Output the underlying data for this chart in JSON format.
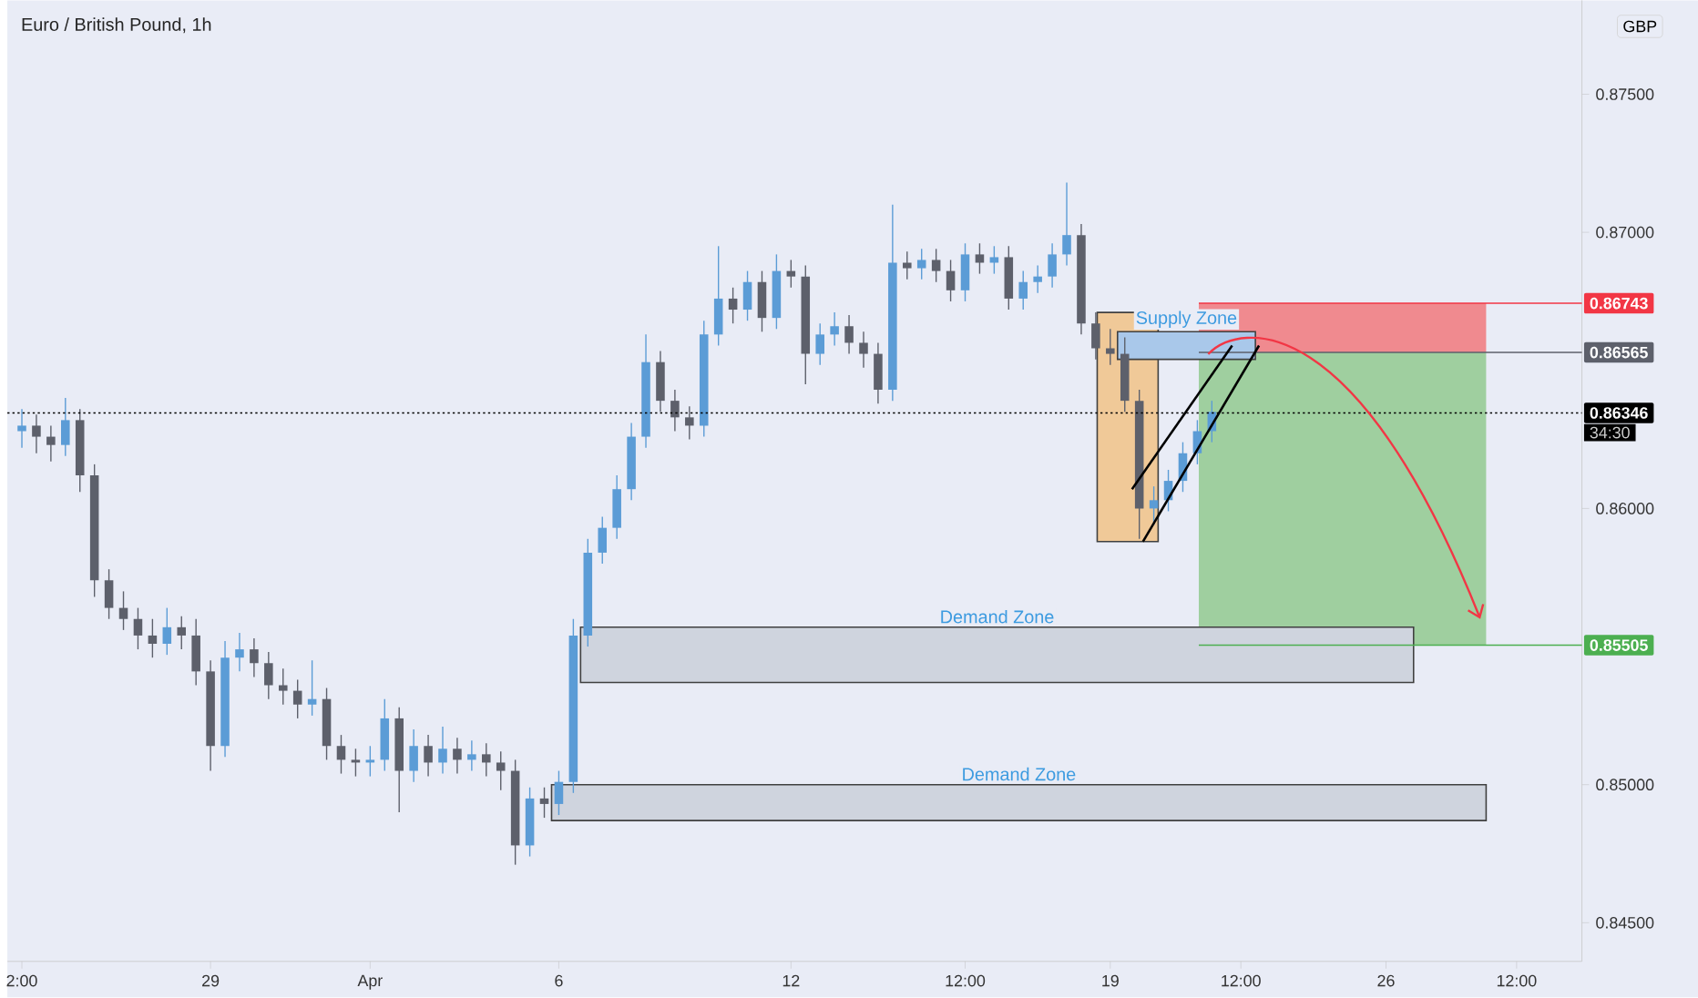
{
  "chart_data": {
    "type": "candlestick",
    "title": "Euro / British Pound, 1h",
    "ylabel": "GBP",
    "categories": [
      "2:00",
      null,
      null,
      null,
      null,
      null,
      null,
      null,
      null,
      null,
      null,
      null,
      null,
      "29",
      null,
      null,
      null,
      null,
      null,
      null,
      null,
      null,
      null,
      null,
      "Apr",
      null,
      null,
      null,
      null,
      null,
      null,
      null,
      null,
      null,
      null,
      null,
      null,
      "6",
      null,
      null,
      null,
      null,
      null,
      null,
      null,
      null,
      null,
      null,
      null,
      null,
      null,
      null,
      null,
      "12",
      null,
      null,
      null,
      null,
      null,
      null,
      null,
      null,
      null,
      null,
      null,
      "12:00",
      null,
      null,
      null,
      null,
      null,
      null,
      null,
      null,
      null,
      "19",
      null,
      null,
      null,
      null,
      null,
      null,
      null,
      null,
      "12:00",
      null,
      null,
      null,
      null,
      null,
      null,
      null,
      null,
      null,
      "26",
      null,
      null,
      null,
      null,
      null,
      null,
      null,
      null,
      "12:00",
      null,
      null,
      null,
      null
    ],
    "ohlc": [
      [
        0.8628,
        0.8636,
        0.8622,
        0.863
      ],
      [
        0.863,
        0.8634,
        0.862,
        0.8626
      ],
      [
        0.8626,
        0.863,
        0.8617,
        0.8623
      ],
      [
        0.8623,
        0.864,
        0.8619,
        0.8632
      ],
      [
        0.8632,
        0.8636,
        0.8606,
        0.8612
      ],
      [
        0.8612,
        0.8616,
        0.8568,
        0.8574
      ],
      [
        0.8574,
        0.8578,
        0.856,
        0.8564
      ],
      [
        0.8564,
        0.857,
        0.8556,
        0.856
      ],
      [
        0.856,
        0.8564,
        0.8549,
        0.8554
      ],
      [
        0.8554,
        0.856,
        0.8546,
        0.8551
      ],
      [
        0.8551,
        0.8564,
        0.8547,
        0.8557
      ],
      [
        0.8557,
        0.8561,
        0.8549,
        0.8554
      ],
      [
        0.8554,
        0.856,
        0.8536,
        0.8541
      ],
      [
        0.8541,
        0.8545,
        0.8505,
        0.8514
      ],
      [
        0.8514,
        0.8552,
        0.851,
        0.8546
      ],
      [
        0.8546,
        0.8555,
        0.8541,
        0.8549
      ],
      [
        0.8549,
        0.8553,
        0.8539,
        0.8544
      ],
      [
        0.8544,
        0.8548,
        0.8531,
        0.8536
      ],
      [
        0.8536,
        0.8542,
        0.8529,
        0.8534
      ],
      [
        0.8534,
        0.8538,
        0.8524,
        0.8529
      ],
      [
        0.8529,
        0.8545,
        0.8525,
        0.8531
      ],
      [
        0.8531,
        0.8535,
        0.8509,
        0.8514
      ],
      [
        0.8514,
        0.8518,
        0.8504,
        0.8509
      ],
      [
        0.8509,
        0.8513,
        0.8503,
        0.8508
      ],
      [
        0.8508,
        0.8514,
        0.8503,
        0.8509
      ],
      [
        0.8509,
        0.8531,
        0.8505,
        0.8524
      ],
      [
        0.8524,
        0.8528,
        0.849,
        0.8505
      ],
      [
        0.8505,
        0.852,
        0.8501,
        0.8514
      ],
      [
        0.8514,
        0.8518,
        0.8503,
        0.8508
      ],
      [
        0.8508,
        0.8521,
        0.8504,
        0.8513
      ],
      [
        0.8513,
        0.8517,
        0.8504,
        0.8509
      ],
      [
        0.8509,
        0.8516,
        0.8505,
        0.8511
      ],
      [
        0.8511,
        0.8515,
        0.8503,
        0.8508
      ],
      [
        0.8508,
        0.8512,
        0.8498,
        0.8505
      ],
      [
        0.8505,
        0.8509,
        0.8471,
        0.8478
      ],
      [
        0.8478,
        0.8499,
        0.8474,
        0.8495
      ],
      [
        0.8495,
        0.8499,
        0.8488,
        0.8493
      ],
      [
        0.8493,
        0.8505,
        0.8489,
        0.8501
      ],
      [
        0.8501,
        0.856,
        0.8497,
        0.8554
      ],
      [
        0.8554,
        0.8589,
        0.855,
        0.8584
      ],
      [
        0.8584,
        0.8597,
        0.858,
        0.8593
      ],
      [
        0.8593,
        0.8612,
        0.8589,
        0.8607
      ],
      [
        0.8607,
        0.8631,
        0.8603,
        0.8626
      ],
      [
        0.8626,
        0.8663,
        0.8622,
        0.8653
      ],
      [
        0.8653,
        0.8657,
        0.8635,
        0.8639
      ],
      [
        0.8639,
        0.8643,
        0.8628,
        0.8633
      ],
      [
        0.8633,
        0.8637,
        0.8625,
        0.863
      ],
      [
        0.863,
        0.8668,
        0.8626,
        0.8663
      ],
      [
        0.8663,
        0.8695,
        0.8659,
        0.8676
      ],
      [
        0.8676,
        0.868,
        0.8667,
        0.8672
      ],
      [
        0.8672,
        0.8686,
        0.8668,
        0.8682
      ],
      [
        0.8682,
        0.8686,
        0.8664,
        0.8669
      ],
      [
        0.8669,
        0.8692,
        0.8665,
        0.8686
      ],
      [
        0.8686,
        0.869,
        0.868,
        0.8684
      ],
      [
        0.8684,
        0.8688,
        0.8645,
        0.8656
      ],
      [
        0.8656,
        0.8667,
        0.8652,
        0.8663
      ],
      [
        0.8663,
        0.8671,
        0.8659,
        0.8666
      ],
      [
        0.8666,
        0.867,
        0.8656,
        0.866
      ],
      [
        0.866,
        0.8664,
        0.8651,
        0.8656
      ],
      [
        0.8656,
        0.866,
        0.8638,
        0.8643
      ],
      [
        0.8643,
        0.871,
        0.8639,
        0.8689
      ],
      [
        0.8689,
        0.8693,
        0.8683,
        0.8687
      ],
      [
        0.8687,
        0.8694,
        0.8683,
        0.869
      ],
      [
        0.869,
        0.8694,
        0.8682,
        0.8686
      ],
      [
        0.8686,
        0.869,
        0.8675,
        0.8679
      ],
      [
        0.8679,
        0.8696,
        0.8675,
        0.8692
      ],
      [
        0.8692,
        0.8696,
        0.8685,
        0.8689
      ],
      [
        0.8689,
        0.8695,
        0.8685,
        0.8691
      ],
      [
        0.8691,
        0.8695,
        0.8672,
        0.8676
      ],
      [
        0.8676,
        0.8686,
        0.8672,
        0.8682
      ],
      [
        0.8682,
        0.8688,
        0.8678,
        0.8684
      ],
      [
        0.8684,
        0.8696,
        0.868,
        0.8692
      ],
      [
        0.8692,
        0.8718,
        0.8688,
        0.8699
      ],
      [
        0.8699,
        0.8703,
        0.8663,
        0.8667
      ],
      [
        0.8667,
        0.8671,
        0.8654,
        0.8658
      ],
      [
        0.8658,
        0.8665,
        0.8652,
        0.8656
      ],
      [
        0.8656,
        0.8662,
        0.8635,
        0.8639
      ],
      [
        0.8639,
        0.8643,
        0.8589,
        0.86
      ],
      [
        0.86,
        0.8608,
        0.8594,
        0.8603
      ],
      [
        0.8603,
        0.8614,
        0.8599,
        0.861
      ],
      [
        0.861,
        0.8624,
        0.8606,
        0.862
      ],
      [
        0.862,
        0.8632,
        0.8616,
        0.8628
      ],
      [
        0.8628,
        0.8639,
        0.8624,
        0.8635
      ],
      null,
      null,
      null,
      null,
      null,
      null,
      null,
      null,
      null,
      null,
      null,
      null,
      null,
      null,
      null,
      null,
      null,
      null,
      null,
      null,
      null,
      null,
      null,
      null,
      null
    ],
    "colors": [
      "#5b9cd6",
      "#5d606b",
      "#5d606b",
      "#5b9cd6",
      "#5d606b",
      "#5d606b",
      "#5d606b",
      "#5d606b",
      "#5d606b",
      "#5d606b",
      "#5b9cd6",
      "#5d606b",
      "#5d606b",
      "#5d606b",
      "#5b9cd6",
      "#5b9cd6",
      "#5d606b",
      "#5d606b",
      "#5d606b",
      "#5d606b",
      "#5b9cd6",
      "#5d606b",
      "#5d606b",
      "#5d606b",
      "#5b9cd6",
      "#5b9cd6",
      "#5d606b",
      "#5b9cd6",
      "#5d606b",
      "#5b9cd6",
      "#5d606b",
      "#5b9cd6",
      "#5d606b",
      "#5d606b",
      "#5d606b",
      "#5b9cd6",
      "#5d606b",
      "#5b9cd6",
      "#5b9cd6",
      "#5b9cd6",
      "#5b9cd6",
      "#5b9cd6",
      "#5b9cd6",
      "#5b9cd6",
      "#5d606b",
      "#5d606b",
      "#5d606b",
      "#5b9cd6",
      "#5b9cd6",
      "#5d606b",
      "#5b9cd6",
      "#5d606b",
      "#5b9cd6",
      "#5d606b",
      "#5d606b",
      "#5b9cd6",
      "#5b9cd6",
      "#5d606b",
      "#5d606b",
      "#5d606b",
      "#5b9cd6",
      "#5d606b",
      "#5b9cd6",
      "#5d606b",
      "#5d606b",
      "#5b9cd6",
      "#5d606b",
      "#5b9cd6",
      "#5d606b",
      "#5b9cd6",
      "#5b9cd6",
      "#5b9cd6",
      "#5b9cd6",
      "#5d606b",
      "#5d606b",
      "#5d606b",
      "#5d606b",
      "#5d606b",
      "#5b9cd6",
      "#5b9cd6",
      "#5b9cd6",
      "#5b9cd6",
      "#5b9cd6",
      null,
      null,
      null,
      null,
      null,
      null,
      null,
      null,
      null,
      null,
      null,
      null,
      null,
      null,
      null,
      null,
      null,
      null,
      null,
      null,
      null,
      null,
      null,
      null,
      null
    ],
    "ylim": [
      0.8436,
      0.8784
    ],
    "yticks": [
      {
        "value": 0.845,
        "label": "0.84500"
      },
      {
        "value": 0.85,
        "label": "0.85000"
      },
      {
        "value": 0.86,
        "label": "0.86000"
      },
      {
        "value": 0.87,
        "label": "0.87000"
      },
      {
        "value": 0.875,
        "label": "0.87500"
      }
    ],
    "ref_lines": [
      {
        "axis": "y",
        "value": 0.86743,
        "label": "0.86743",
        "color": "#f23645"
      },
      {
        "axis": "y",
        "value": 0.86565,
        "label": "0.86565",
        "color": "#5d606b"
      },
      {
        "axis": "y",
        "value": 0.86346,
        "label": "0.86346",
        "color": "#000000",
        "line_style": "dotted"
      },
      {
        "axis": "y",
        "value": 0.85505,
        "label": "0.85505",
        "color": "#4caf50"
      }
    ],
    "bands": [
      {
        "axis": "y",
        "from": 0.86565,
        "to": 0.86743,
        "color": "#f08a8f"
      },
      {
        "axis": "y",
        "from": 0.85505,
        "to": 0.86565,
        "color": "#9fcf9f"
      },
      {
        "axis": "y",
        "from": 0.8537,
        "to": 0.8557,
        "label": "Demand Zone",
        "color": "#cfd4de"
      },
      {
        "axis": "y",
        "from": 0.8487,
        "to": 0.85,
        "label": "Demand Zone",
        "color": "#cfd4de"
      },
      {
        "axis": "y",
        "from": 0.8654,
        "to": 0.8664,
        "label": "Supply Zone",
        "color": "#a9c8ea"
      }
    ],
    "annotations": [
      "34:30"
    ]
  }
}
